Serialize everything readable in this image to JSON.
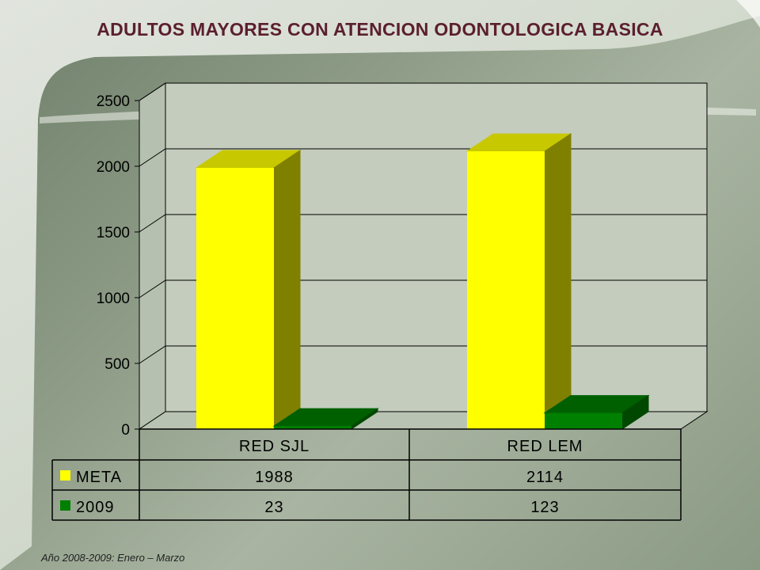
{
  "slide": {
    "title": "ADULTOS MAYORES CON ATENCION ODONTOLOGICA BASICA",
    "footnote": "Año 2008-2009: Enero – Marzo"
  },
  "colors": {
    "title": "#5b1f2e",
    "meta_front": "#ffff00",
    "meta_top": "#c8c800",
    "meta_side": "#808000",
    "y2009_front": "#008000",
    "y2009_top": "#006000",
    "y2009_side": "#004800",
    "plot_bg": "#c3ccbd"
  },
  "chart_data": {
    "type": "bar",
    "title": "ADULTOS MAYORES CON ATENCION ODONTOLOGICA BASICA",
    "categories": [
      "RED SJL",
      "RED LEM"
    ],
    "series": [
      {
        "name": "META",
        "values": [
          1988,
          2114
        ],
        "color": "#ffff00"
      },
      {
        "name": "2009",
        "values": [
          23,
          123
        ],
        "color": "#008000"
      }
    ],
    "ylim": [
      0,
      2500
    ],
    "yticks": [
      "0",
      "500",
      "1000",
      "1500",
      "2000",
      "2500"
    ],
    "grid": true,
    "legend": "data-table-left",
    "three_d": true
  }
}
